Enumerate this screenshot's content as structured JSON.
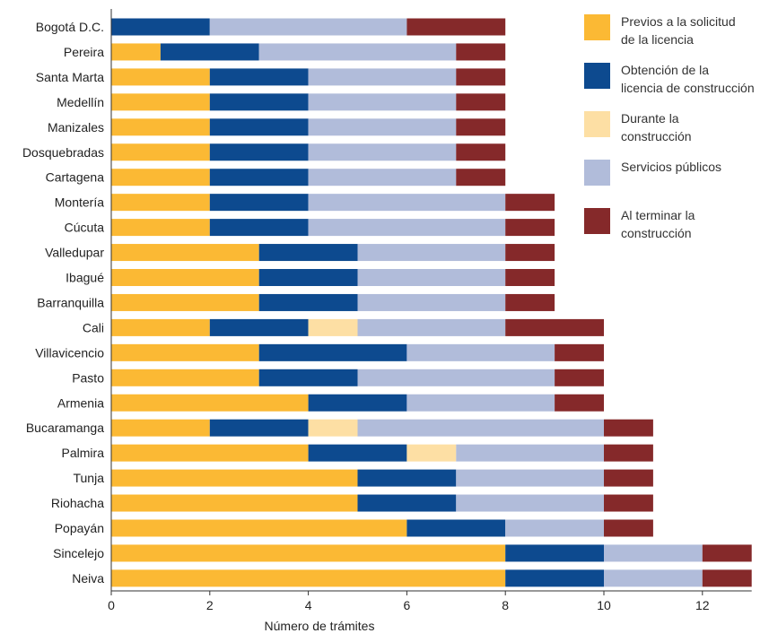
{
  "chart_data": {
    "type": "bar",
    "orientation": "horizontal",
    "stacked": true,
    "xlabel": "Número de trámites",
    "xlim": [
      0,
      13
    ],
    "xticks": [
      0,
      2,
      4,
      6,
      8,
      10,
      12
    ],
    "grid": false,
    "legend_position": "top-right",
    "categories": [
      "Bogotá D.C.",
      "Pereira",
      "Santa Marta",
      "Medellín",
      "Manizales",
      "Dosquebradas",
      "Cartagena",
      "Montería",
      "Cúcuta",
      "Valledupar",
      "Ibagué",
      "Barranquilla",
      "Cali",
      "Villavicencio",
      "Pasto",
      "Armenia",
      "Bucaramanga",
      "Palmira",
      "Tunja",
      "Riohacha",
      "Popayán",
      "Sincelejo",
      "Neiva"
    ],
    "series": [
      {
        "name": "Previos a la solicitud de la licencia",
        "color": "#FBB934",
        "values": [
          0,
          1,
          2,
          2,
          2,
          2,
          2,
          2,
          2,
          3,
          3,
          3,
          2,
          3,
          3,
          4,
          2,
          4,
          5,
          5,
          6,
          8,
          8
        ]
      },
      {
        "name": "Obtención de la licencia de construcción",
        "color": "#0D4A8F",
        "values": [
          2,
          2,
          2,
          2,
          2,
          2,
          2,
          2,
          2,
          2,
          2,
          2,
          2,
          3,
          2,
          2,
          2,
          2,
          2,
          2,
          2,
          2,
          2
        ]
      },
      {
        "name": "Durante la construcción",
        "color": "#FDDFA4",
        "values": [
          0,
          0,
          0,
          0,
          0,
          0,
          0,
          0,
          0,
          0,
          0,
          0,
          1,
          0,
          0,
          0,
          1,
          1,
          0,
          0,
          0,
          0,
          0
        ]
      },
      {
        "name": "Servicios públicos",
        "color": "#B1BCDA",
        "values": [
          4,
          4,
          3,
          3,
          3,
          3,
          3,
          4,
          4,
          3,
          3,
          3,
          3,
          3,
          4,
          3,
          5,
          3,
          3,
          3,
          2,
          2,
          2
        ]
      },
      {
        "name": "Al terminar la construcción",
        "color": "#85292A",
        "values": [
          2,
          1,
          1,
          1,
          1,
          1,
          1,
          1,
          1,
          1,
          1,
          1,
          2,
          1,
          1,
          1,
          1,
          1,
          1,
          1,
          1,
          1,
          1
        ]
      }
    ]
  },
  "legend": {
    "items": [
      {
        "lines": [
          "Previos a la solicitud",
          "de la licencia"
        ],
        "color": "#FBB934"
      },
      {
        "lines": [
          "Obtención de la",
          "licencia de construcción"
        ],
        "color": "#0D4A8F"
      },
      {
        "lines": [
          "Durante la",
          "construcción"
        ],
        "color": "#FDDFA4"
      },
      {
        "lines": [
          "Servicios públicos"
        ],
        "color": "#B1BCDA"
      },
      {
        "lines": [
          "Al terminar la",
          "construcción"
        ],
        "color": "#85292A"
      }
    ]
  }
}
